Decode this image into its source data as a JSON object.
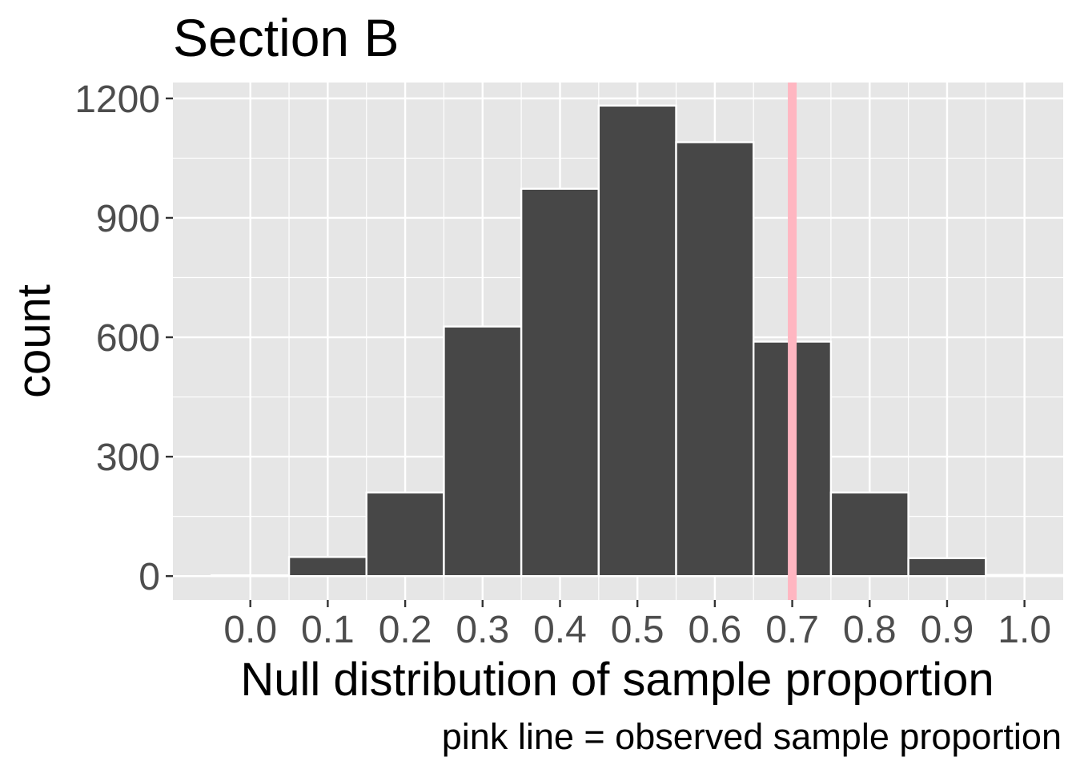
{
  "chart_data": {
    "type": "bar",
    "title": "Section B",
    "xlabel": "Null distribution of sample proportion",
    "ylabel": "count",
    "caption": "pink line = observed sample proportion",
    "x": [
      0.0,
      0.1,
      0.2,
      0.3,
      0.4,
      0.5,
      0.6,
      0.7,
      0.8,
      0.9,
      1.0
    ],
    "values": [
      2,
      48,
      210,
      627,
      973,
      1182,
      1090,
      589,
      210,
      45,
      3
    ],
    "bin_width": 0.1,
    "xlim": [
      -0.1,
      1.05
    ],
    "ylim": [
      -60,
      1240
    ],
    "xticks": [
      "0.0",
      "0.1",
      "0.2",
      "0.3",
      "0.4",
      "0.5",
      "0.6",
      "0.7",
      "0.8",
      "0.9",
      "1.0"
    ],
    "yticks": [
      "0",
      "300",
      "600",
      "900",
      "1200"
    ],
    "ytick_values": [
      0,
      300,
      600,
      900,
      1200
    ],
    "observed_proportion": 0.7,
    "colors": {
      "bar_fill": "#474747",
      "bar_outline": "#ffffff",
      "panel_background": "#e6e6e6",
      "grid": "#ffffff",
      "observed_line": "#ffb6c1"
    },
    "grid": true
  }
}
